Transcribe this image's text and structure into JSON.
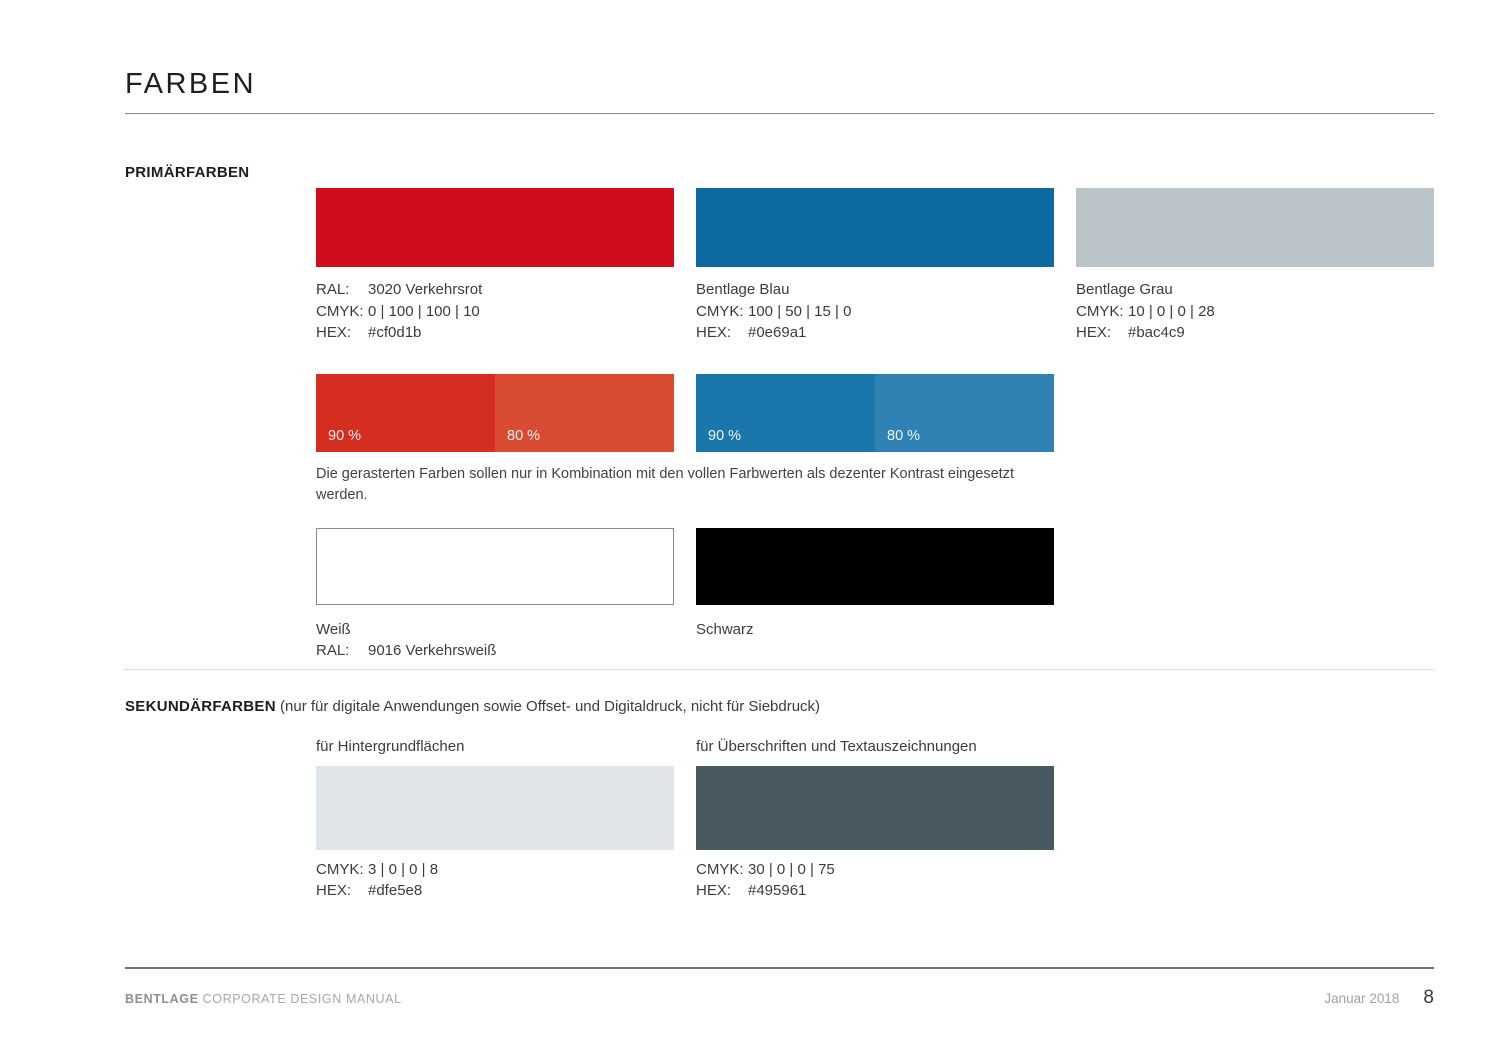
{
  "page": {
    "title": "FARBEN"
  },
  "primary": {
    "heading": "PRIMÄRFARBEN",
    "swatches": [
      {
        "color": "#cf0d1b",
        "lines": [
          {
            "label": "RAL:",
            "value": "3020 Verkehrsrot"
          },
          {
            "label": "CMYK:",
            "value": "0 | 100 | 100 | 10"
          },
          {
            "label": "HEX:",
            "value": "#cf0d1b"
          }
        ]
      },
      {
        "color": "#0e69a1",
        "name": "Bentlage Blau",
        "lines": [
          {
            "label": "CMYK:",
            "value": "100 | 50 | 15 | 0"
          },
          {
            "label": "HEX:",
            "value": "#0e69a1"
          }
        ]
      },
      {
        "color": "#bac4c9",
        "name": "Bentlage Grau",
        "lines": [
          {
            "label": "CMYK:",
            "value": "10 | 0 | 0 | 28"
          },
          {
            "label": "HEX:",
            "value": "#bac4c9"
          }
        ]
      }
    ],
    "tints": {
      "red": [
        {
          "label": "90 %",
          "color": "#d42e20"
        },
        {
          "label": "80 %",
          "color": "#d94b33"
        }
      ],
      "blue": [
        {
          "label": "90 %",
          "color": "#1b76ab"
        },
        {
          "label": "80 %",
          "color": "#2f82b3"
        }
      ]
    },
    "note": "Die gerasterten Farben sollen nur in Kombination mit den vollen Farbwerten als dezenter Kontrast eingesetzt werden.",
    "bw": {
      "white": {
        "color": "#ffffff",
        "name": "Weiß",
        "lines": [
          {
            "label": "RAL:",
            "value": "9016 Verkehrsweiß"
          }
        ]
      },
      "black": {
        "color": "#000000",
        "name": "Schwarz"
      }
    }
  },
  "secondary": {
    "heading": "SEKUNDÄRFARBEN",
    "heading_note": "(nur für digitale Anwendungen sowie Offset- und Digitaldruck, nicht für Siebdruck)",
    "swatches": [
      {
        "usage": "für Hintergrundflächen",
        "color": "#dfe5e8",
        "lines": [
          {
            "label": "CMYK:",
            "value": "3 | 0 | 0 | 8"
          },
          {
            "label": "HEX:",
            "value": "#dfe5e8"
          }
        ]
      },
      {
        "usage": "für Überschriften und Textauszeichnungen",
        "color": "#495961",
        "lines": [
          {
            "label": "CMYK:",
            "value": "30 | 0 | 0 | 75"
          },
          {
            "label": "HEX:",
            "value": "#495961"
          }
        ]
      }
    ]
  },
  "footer": {
    "brand": "BENTLAGE",
    "manual": "CORPORATE DESIGN MANUAL",
    "date": "Januar 2018",
    "page_number": "8"
  }
}
